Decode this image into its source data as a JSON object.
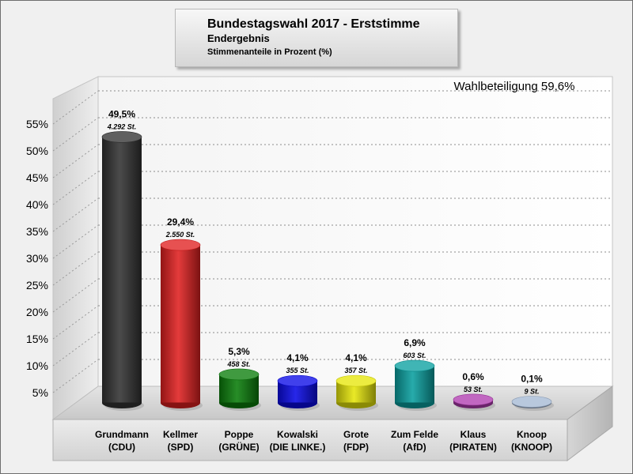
{
  "chart_data": {
    "type": "bar",
    "title": "Bundestagswahl 2017 - Erststimme",
    "subtitle": "Endergebnis",
    "caption": "Stimmenanteile in Prozent (%)",
    "annotation": "Wahlbeteiligung 59,6%",
    "xlabel": "",
    "ylabel": "",
    "ylim": [
      0,
      60
    ],
    "yticks": [
      5,
      10,
      15,
      20,
      25,
      30,
      35,
      40,
      45,
      50,
      55
    ],
    "ytick_labels": [
      "5%",
      "10%",
      "15%",
      "20%",
      "25%",
      "30%",
      "35%",
      "40%",
      "45%",
      "50%",
      "55%"
    ],
    "grid": true,
    "legend": "none",
    "categories": [
      [
        "Grundmann",
        "(CDU)"
      ],
      [
        "Kellmer",
        "(SPD)"
      ],
      [
        "Poppe",
        "(GRÜNE)"
      ],
      [
        "Kowalski",
        "(DIE LINKE.)"
      ],
      [
        "Grote",
        "(FDP)"
      ],
      [
        "Zum Felde",
        "(AfD)"
      ],
      [
        "Klaus",
        "(PIRATEN)"
      ],
      [
        "Knoop",
        "(KNOOP)"
      ]
    ],
    "values": [
      49.5,
      29.4,
      5.3,
      4.1,
      4.1,
      6.9,
      0.6,
      0.1
    ],
    "value_labels": [
      "49,5%",
      "29,4%",
      "5,3%",
      "4,1%",
      "4,1%",
      "6,9%",
      "0,6%",
      "0,1%"
    ],
    "votes": [
      4292,
      2550,
      458,
      355,
      357,
      603,
      53,
      9
    ],
    "vote_labels": [
      "4.292 St.",
      "2.550 St.",
      "458 St.",
      "355 St.",
      "357 St.",
      "603 St.",
      "53 St.",
      "9 St."
    ],
    "colors": [
      "#333333",
      "#e02020",
      "#0a7d0a",
      "#0a0ae6",
      "#e6e60a",
      "#0aa0a0",
      "#b03cb0",
      "#a4b8d4"
    ]
  }
}
